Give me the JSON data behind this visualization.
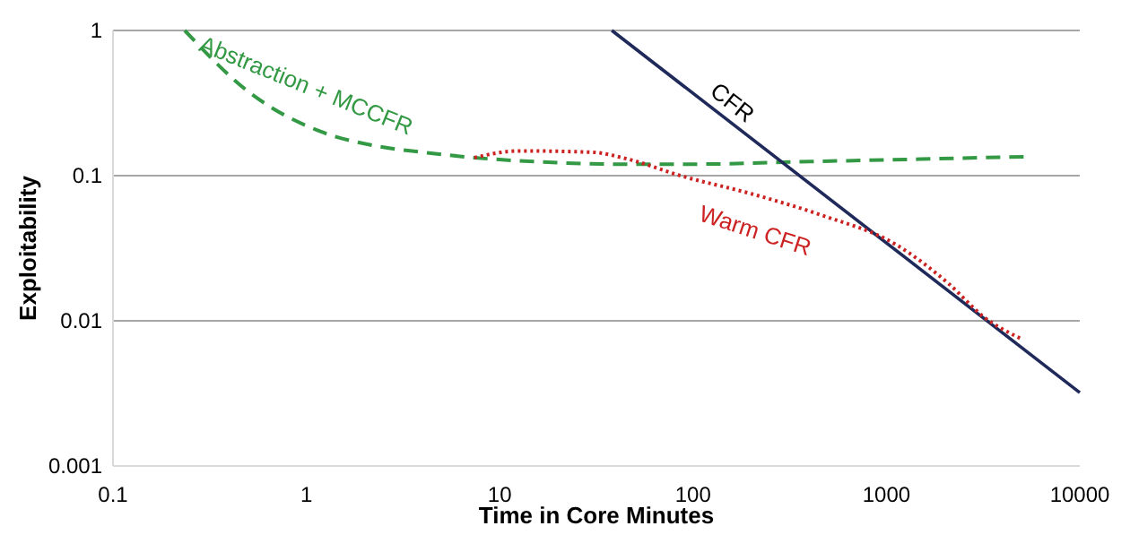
{
  "chart_data": {
    "type": "line",
    "xlabel": "Time in Core Minutes",
    "ylabel": "Exploitability",
    "log": "xy",
    "grid": "y",
    "xlim": [
      0.1,
      10000
    ],
    "xticks": [
      0.1,
      1,
      10,
      100,
      1000,
      10000
    ],
    "ylim": [
      0.001,
      1
    ],
    "yticks": [
      0.001,
      0.01,
      0.1,
      1
    ],
    "series": [
      {
        "name": "Abstraction + MCCFR",
        "color": "#339944",
        "line_style": "dashed",
        "x": [
          0.235,
          0.5,
          1.2,
          2.3,
          4,
          7.4,
          15,
          40,
          100,
          400,
          1500,
          5150
        ],
        "values": [
          1,
          0.38,
          0.2,
          0.16,
          0.145,
          0.133,
          0.125,
          0.12,
          0.12,
          0.125,
          0.13,
          0.135
        ]
      },
      {
        "name": "CFR",
        "color": "#1f2a5a",
        "line_style": "solid",
        "x": [
          38,
          10000
        ],
        "values": [
          1,
          0.0032
        ]
      },
      {
        "name": "Warm CFR",
        "color": "#cc2222",
        "line_style": "dotted",
        "x": [
          7.4,
          12.6,
          30,
          46,
          86,
          200,
          470,
          1100,
          2100,
          3200,
          5000
        ],
        "values": [
          0.133,
          0.148,
          0.145,
          0.13,
          0.1,
          0.075,
          0.053,
          0.034,
          0.018,
          0.0106,
          0.0075
        ]
      }
    ]
  }
}
